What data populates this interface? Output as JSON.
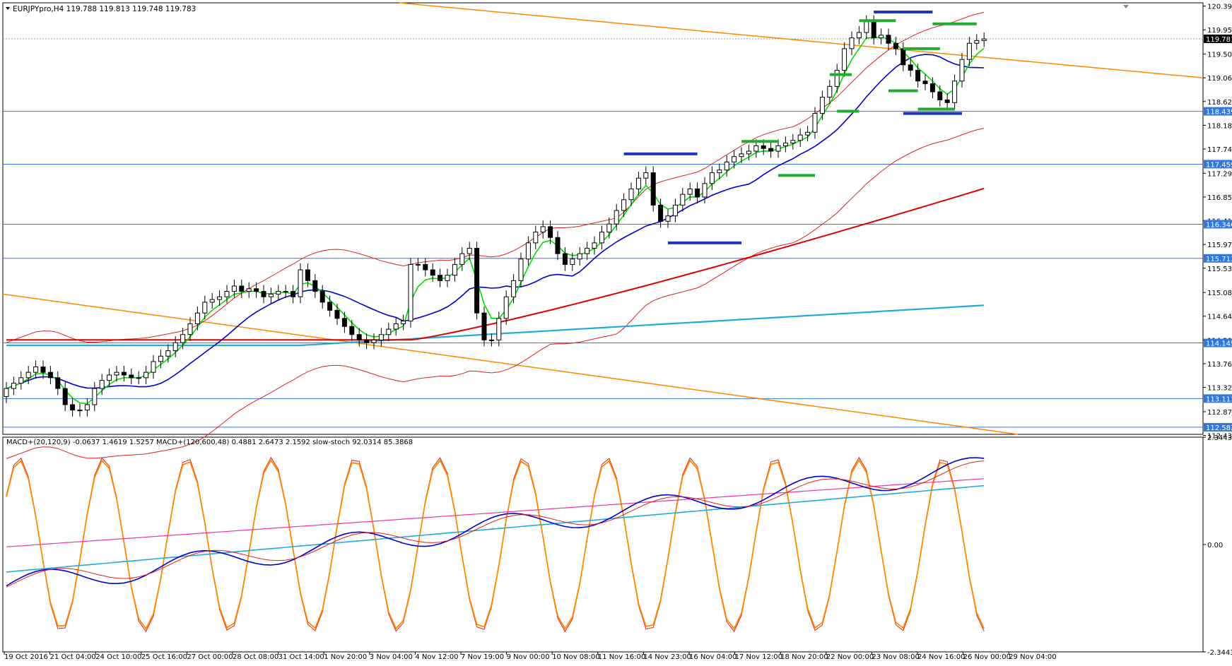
{
  "window": {
    "symbol_header": "EURJPYpro,H4  119.788 119.813 119.748 119.783",
    "indicator_header": "MACD+(20,120,9) -0.0637 1.4619 1.5257  MACD+(120,600,48) 0.4881 2.6473 2.1592  slow-stoch 92.0314 85.3868"
  },
  "chart_data": [
    {
      "type": "candlestick",
      "symbol": "EURJPYpro",
      "timeframe": "H4",
      "ohlc_current": {
        "open": 119.788,
        "high": 119.813,
        "low": 119.748,
        "close": 119.783
      },
      "ylim": [
        112.45,
        120.45
      ],
      "y_ticks": [
        "120.390",
        "119.950",
        "119.500",
        "119.060",
        "118.620",
        "118.180",
        "117.740",
        "117.290",
        "116.850",
        "116.410",
        "115.970",
        "115.530",
        "115.080",
        "114.640",
        "114.200",
        "113.760",
        "113.320",
        "112.870",
        "112.430"
      ],
      "price_labels": [
        {
          "value": 119.783,
          "text": "119.783",
          "style": "current"
        },
        {
          "value": 118.439,
          "text": "118.439"
        },
        {
          "value": 117.459,
          "text": "117.459"
        },
        {
          "value": 116.346,
          "text": "116.346"
        },
        {
          "value": 115.713,
          "text": "115.713"
        },
        {
          "value": 114.145,
          "text": "114.145"
        },
        {
          "value": 113.113,
          "text": "113.113"
        },
        {
          "value": 112.582,
          "text": "112.582"
        }
      ],
      "x_ticks": [
        "19 Oct 2016",
        "21 Oct 04:00",
        "24 Oct 10:00",
        "25 Oct 16:00",
        "27 Oct 00:00",
        "28 Oct 08:00",
        "31 Oct 14:00",
        "1 Nov 20:00",
        "3 Nov 04:00",
        "4 Nov 12:00",
        "7 Nov 19:00",
        "9 Nov 00:00",
        "10 Nov 08:00",
        "11 Nov 16:00",
        "14 Nov 23:00",
        "16 Nov 04:00",
        "17 Nov 12:00",
        "18 Nov 20:00",
        "22 Nov 00:00",
        "23 Nov 08:00",
        "24 Nov 16:00",
        "26 Nov 00:00",
        "29 Nov 04:00"
      ],
      "closes": [
        113.3,
        113.4,
        113.5,
        113.6,
        113.7,
        113.6,
        113.5,
        113.3,
        113.0,
        112.9,
        112.9,
        113.0,
        113.3,
        113.45,
        113.55,
        113.6,
        113.55,
        113.5,
        113.5,
        113.6,
        113.8,
        113.9,
        114.0,
        114.15,
        114.3,
        114.5,
        114.7,
        114.9,
        114.95,
        115.0,
        115.1,
        115.2,
        115.1,
        115.15,
        115.1,
        115.0,
        115.05,
        115.1,
        115.1,
        115.0,
        115.5,
        115.3,
        115.1,
        114.9,
        114.75,
        114.6,
        114.45,
        114.3,
        114.2,
        114.15,
        114.2,
        114.3,
        114.4,
        114.5,
        114.55,
        115.6,
        115.6,
        115.5,
        115.4,
        115.3,
        115.4,
        115.6,
        115.8,
        115.9,
        114.7,
        114.2,
        114.2,
        114.6,
        115.0,
        115.3,
        115.7,
        116.0,
        116.2,
        116.3,
        116.1,
        115.8,
        115.6,
        115.7,
        115.8,
        115.9,
        116.0,
        116.2,
        116.35,
        116.6,
        116.8,
        117.0,
        117.2,
        117.3,
        116.7,
        116.4,
        116.5,
        116.7,
        116.9,
        117.0,
        116.85,
        117.1,
        117.3,
        117.35,
        117.5,
        117.6,
        117.65,
        117.7,
        117.8,
        117.75,
        117.7,
        117.8,
        117.85,
        117.9,
        118.0,
        118.05,
        118.4,
        118.7,
        118.9,
        119.2,
        119.6,
        119.8,
        119.9,
        120.1,
        119.8,
        119.85,
        119.7,
        119.6,
        119.3,
        119.2,
        119.0,
        118.95,
        118.8,
        118.65,
        118.6,
        119.0,
        119.4,
        119.7,
        119.75,
        119.78
      ],
      "annotation_levels": [
        {
          "color": "#2233bb",
          "price": 120.28,
          "from": 118,
          "to": 126
        },
        {
          "color": "#22aa33",
          "price": 120.12,
          "from": 116,
          "to": 121
        },
        {
          "color": "#22aa33",
          "price": 120.06,
          "from": 126,
          "to": 132
        },
        {
          "color": "#22aa33",
          "price": 119.6,
          "from": 122,
          "to": 127
        },
        {
          "color": "#22aa33",
          "price": 119.12,
          "from": 112,
          "to": 115
        },
        {
          "color": "#22aa33",
          "price": 118.82,
          "from": 120,
          "to": 124
        },
        {
          "color": "#22aa33",
          "price": 118.44,
          "from": 113,
          "to": 116
        },
        {
          "color": "#22aa33",
          "price": 118.48,
          "from": 124,
          "to": 129
        },
        {
          "color": "#2233bb",
          "price": 118.4,
          "from": 122,
          "to": 130
        },
        {
          "color": "#22aa33",
          "price": 117.88,
          "from": 100,
          "to": 105
        },
        {
          "color": "#2233bb",
          "price": 117.65,
          "from": 84,
          "to": 94
        },
        {
          "color": "#22aa33",
          "price": 117.25,
          "from": 105,
          "to": 110
        },
        {
          "color": "#2233bb",
          "price": 116.0,
          "from": 90,
          "to": 100
        }
      ]
    },
    {
      "type": "line",
      "title": "MACD+(20,120,9) / MACD+(120,600,48) / slow-stoch",
      "ylim": [
        -2.3443,
        2.3443
      ],
      "y_ticks": [
        "2.3443",
        "0.00",
        "-2.3443"
      ],
      "values": {
        "macd1": -0.0637,
        "macd1_a": 1.4619,
        "macd1_b": 1.5257,
        "macd2": 0.4881,
        "macd2_a": 2.6473,
        "macd2_b": 2.1592,
        "stoch_k": 92.0314,
        "stoch_d": 85.3868
      }
    }
  ],
  "colors": {
    "bull": "#ffffff",
    "bear": "#000000",
    "ma_fast": "#00dd00",
    "ma_mid": "#0000cc",
    "ma_slow": "#dd0000",
    "ma_long": "#22aadd",
    "trendline": "#ff8800",
    "hline": "#3377dd"
  }
}
